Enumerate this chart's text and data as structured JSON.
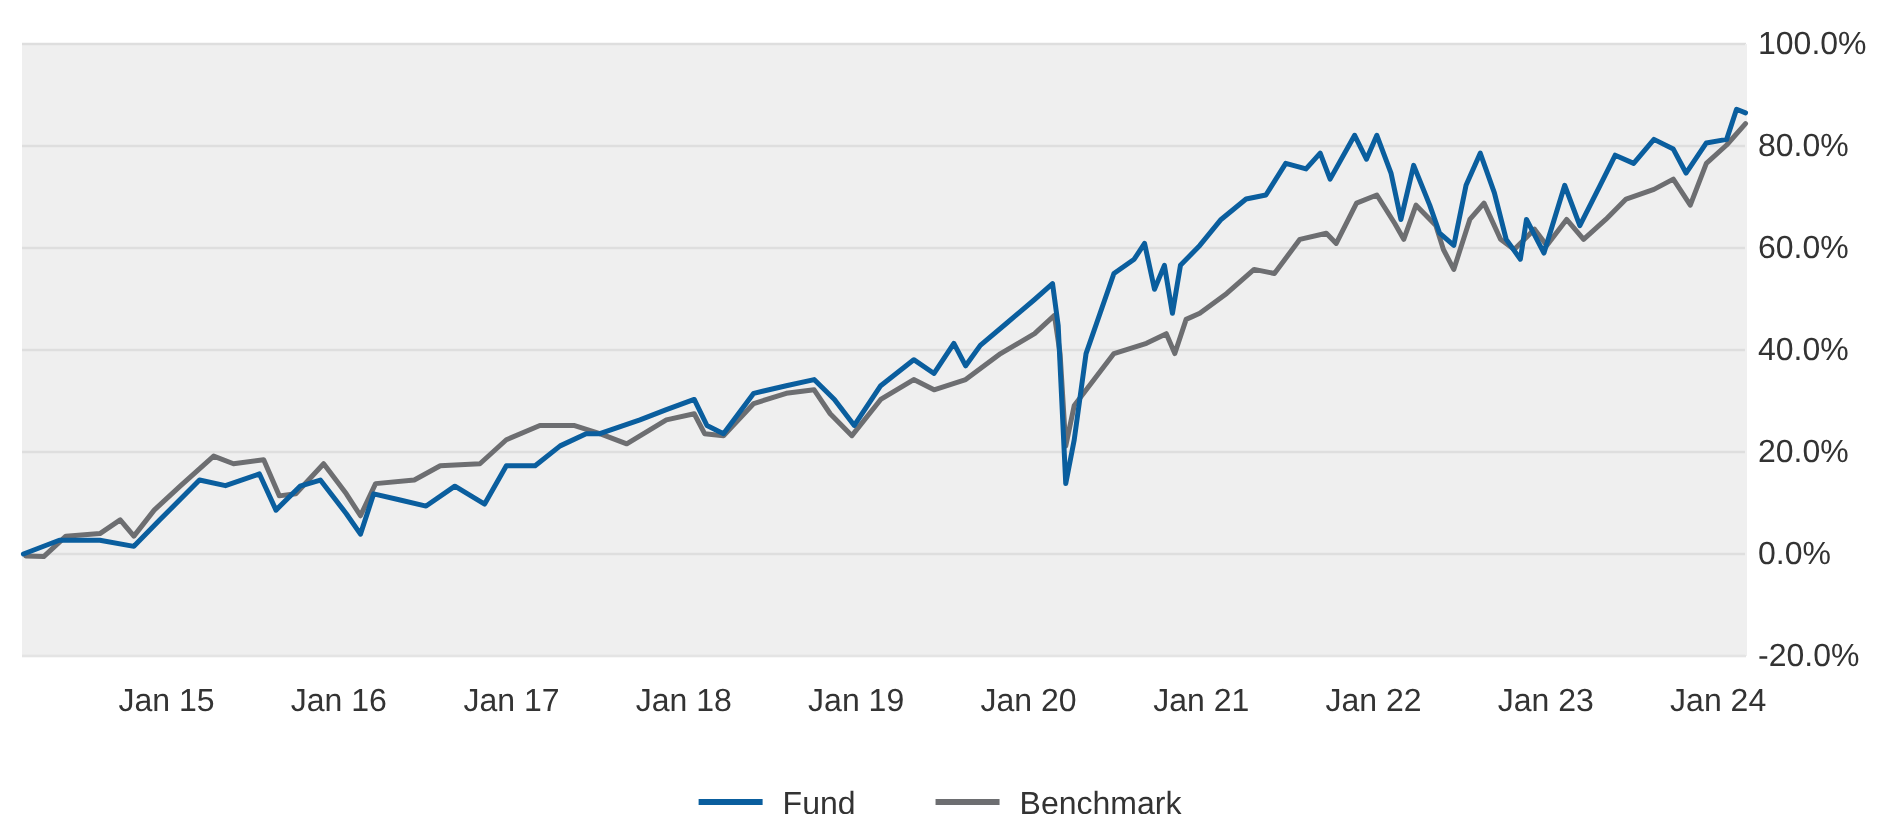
{
  "chart_data": {
    "type": "line",
    "xlim": [
      "2014-03-01",
      "2024-02-29"
    ],
    "ylim": [
      -20,
      100
    ],
    "xticks": [
      {
        "value": "2015-01-01",
        "label": "Jan 15"
      },
      {
        "value": "2016-01-01",
        "label": "Jan 16"
      },
      {
        "value": "2017-01-01",
        "label": "Jan 17"
      },
      {
        "value": "2018-01-01",
        "label": "Jan 18"
      },
      {
        "value": "2019-01-01",
        "label": "Jan 19"
      },
      {
        "value": "2020-01-01",
        "label": "Jan 20"
      },
      {
        "value": "2021-01-01",
        "label": "Jan 21"
      },
      {
        "value": "2022-01-01",
        "label": "Jan 22"
      },
      {
        "value": "2023-01-01",
        "label": "Jan 23"
      },
      {
        "value": "2024-01-01",
        "label": "Jan 24"
      }
    ],
    "yticks": [
      {
        "value": -20,
        "label": "-20.0%"
      },
      {
        "value": 0,
        "label": "0.0%"
      },
      {
        "value": 20,
        "label": "20.0%"
      },
      {
        "value": 40,
        "label": "40.0%"
      },
      {
        "value": 60,
        "label": "60.0%"
      },
      {
        "value": 80,
        "label": "80.0%"
      },
      {
        "value": 100,
        "label": "100.0%"
      }
    ],
    "grid": "y",
    "legend": "bottom",
    "series": [
      {
        "name": "Fund",
        "color": "#0a5e9e",
        "x": [
          "2014-03-04",
          "2014-05-19",
          "2014-08-13",
          "2014-10-24",
          "2014-12-18",
          "2015-03-12",
          "2015-05-06",
          "2015-07-17",
          "2015-08-21",
          "2015-10-11",
          "2015-11-23",
          "2016-01-17",
          "2016-02-16",
          "2016-03-15",
          "2016-05-10",
          "2016-07-04",
          "2016-09-03",
          "2016-11-05",
          "2016-12-21",
          "2017-02-20",
          "2017-04-14",
          "2017-06-08",
          "2017-07-07",
          "2017-09-30",
          "2017-11-25",
          "2018-01-23",
          "2018-02-19",
          "2018-03-26",
          "2018-05-29",
          "2018-08-06",
          "2018-10-04",
          "2018-11-16",
          "2018-12-28",
          "2019-02-22",
          "2019-05-03",
          "2019-06-15",
          "2019-07-27",
          "2019-08-21",
          "2019-09-21",
          "2019-11-15",
          "2020-01-14",
          "2020-02-21",
          "2020-03-04",
          "2020-03-20",
          "2020-04-07",
          "2020-05-02",
          "2020-06-30",
          "2020-08-12",
          "2020-09-03",
          "2020-09-24",
          "2020-10-15",
          "2020-11-01",
          "2020-11-18",
          "2020-12-29",
          "2021-02-12",
          "2021-04-06",
          "2021-05-18",
          "2021-06-29",
          "2021-08-11",
          "2021-09-10",
          "2021-10-01",
          "2021-11-22",
          "2021-12-17",
          "2022-01-08",
          "2022-02-07",
          "2022-02-28",
          "2022-03-27",
          "2022-04-30",
          "2022-05-21",
          "2022-06-20",
          "2022-07-16",
          "2022-08-15",
          "2022-09-14",
          "2022-10-09",
          "2022-11-08",
          "2022-11-21",
          "2022-12-28",
          "2023-02-10",
          "2023-03-14",
          "2023-04-26",
          "2023-05-28",
          "2023-07-06",
          "2023-08-18",
          "2023-09-28",
          "2023-10-25",
          "2023-12-07",
          "2024-01-19",
          "2024-02-09",
          "2024-02-28"
        ],
        "values": [
          0,
          2.7,
          2.7,
          1.5,
          6.7,
          14.5,
          13.4,
          15.7,
          8.6,
          13.3,
          14.5,
          7.9,
          3.9,
          11.8,
          10.6,
          9.4,
          13.3,
          9.8,
          17.3,
          17.3,
          21.2,
          23.6,
          23.6,
          26.3,
          28.3,
          30.3,
          25.2,
          23.6,
          31.5,
          33,
          34.2,
          30.3,
          25.2,
          33,
          38.1,
          35.4,
          41.3,
          36.9,
          40.9,
          45.2,
          49.9,
          53,
          44.8,
          13.8,
          22.4,
          39.3,
          55,
          57.8,
          60.9,
          51.9,
          56.6,
          47.2,
          56.6,
          60.5,
          65.6,
          69.6,
          70.4,
          76.6,
          75.5,
          78.6,
          73.5,
          82.1,
          77.4,
          82.1,
          74.7,
          65.6,
          76.2,
          68.4,
          62.9,
          60.5,
          72.3,
          78.6,
          70.8,
          61.7,
          57.8,
          65.6,
          59,
          72.3,
          64.4,
          72.3,
          78.2,
          76.6,
          81.3,
          79.4,
          74.7,
          80.6,
          81.3,
          87.2,
          86.5
        ]
      },
      {
        "name": "Benchmark",
        "color": "#6d6e71",
        "x": [
          "2014-03-09",
          "2014-04-16",
          "2014-06-02",
          "2014-08-13",
          "2014-09-25",
          "2014-10-24",
          "2014-12-06",
          "2015-01-30",
          "2015-04-11",
          "2015-05-23",
          "2015-07-26",
          "2015-08-28",
          "2015-10-02",
          "2015-11-30",
          "2016-01-17",
          "2016-02-16",
          "2016-03-19",
          "2016-06-09",
          "2016-08-03",
          "2016-10-26",
          "2016-12-21",
          "2017-03-02",
          "2017-05-13",
          "2017-07-07",
          "2017-09-02",
          "2017-11-25",
          "2018-01-23",
          "2018-02-14",
          "2018-03-26",
          "2018-05-29",
          "2018-08-06",
          "2018-10-04",
          "2018-11-07",
          "2018-12-23",
          "2019-02-22",
          "2019-05-03",
          "2019-06-15",
          "2019-08-21",
          "2019-11-03",
          "2020-01-14",
          "2020-02-25",
          "2020-03-08",
          "2020-03-20",
          "2020-04-07",
          "2020-05-19",
          "2020-06-30",
          "2020-09-07",
          "2020-10-19",
          "2020-11-06",
          "2020-11-30",
          "2020-12-29",
          "2021-02-24",
          "2021-04-23",
          "2021-06-05",
          "2021-07-29",
          "2021-09-23",
          "2021-10-14",
          "2021-11-26",
          "2022-01-08",
          "2022-02-15",
          "2022-03-06",
          "2022-04-01",
          "2022-05-13",
          "2022-05-29",
          "2022-06-20",
          "2022-07-24",
          "2022-08-23",
          "2022-09-27",
          "2022-10-26",
          "2022-12-08",
          "2023-01-03",
          "2023-02-14",
          "2023-03-22",
          "2023-05-08",
          "2023-06-20",
          "2023-08-18",
          "2023-09-28",
          "2023-11-03",
          "2023-12-07",
          "2024-01-19",
          "2024-02-28"
        ],
        "values": [
          -0.4,
          -0.5,
          3.5,
          4,
          6.7,
          3.5,
          8.6,
          13.3,
          19.2,
          17.7,
          18.5,
          11.4,
          11.8,
          17.7,
          11.8,
          7.5,
          13.8,
          14.5,
          17.3,
          17.7,
          22.4,
          25.2,
          25.2,
          23.6,
          21.6,
          26.3,
          27.5,
          23.6,
          23.2,
          29.5,
          31.5,
          32.2,
          27.5,
          23.2,
          30.3,
          34.2,
          32.2,
          34.2,
          39.3,
          43.2,
          46.8,
          39.3,
          21.2,
          29.1,
          34.2,
          39.3,
          41.3,
          43.2,
          39.3,
          46,
          47.2,
          51.1,
          55.8,
          55,
          61.7,
          62.9,
          60.9,
          68.8,
          70.4,
          64.8,
          61.7,
          68.4,
          64.4,
          59.7,
          55.8,
          65.6,
          68.8,
          61.7,
          59.7,
          63.7,
          60.5,
          65.6,
          61.7,
          65.6,
          69.6,
          71.5,
          73.5,
          68.4,
          76.6,
          80.2,
          84.4
        ]
      }
    ]
  }
}
